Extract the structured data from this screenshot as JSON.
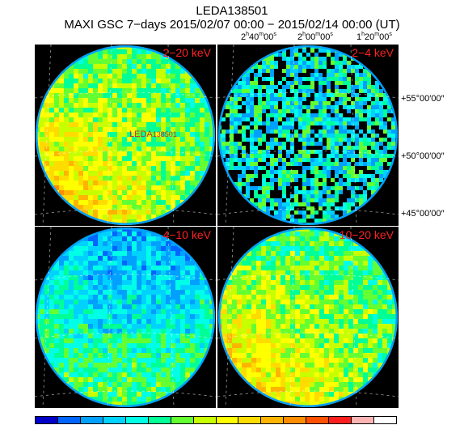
{
  "title": "LEDA138501",
  "subtitle": "MAXI GSC 7−days 2015/02/07 00:00 − 2015/02/14 00:00 (UT)",
  "source_label": {
    "prefix": "LEDA",
    "number": "138501"
  },
  "panels": [
    {
      "band": "2−20 keV",
      "style": "smooth"
    },
    {
      "band": "2−4 keV",
      "style": "noisy"
    },
    {
      "band": "4−10 keV",
      "style": "blue"
    },
    {
      "band": "10−20 keV",
      "style": "smooth"
    }
  ],
  "ra_labels": [
    {
      "h": "2",
      "m": "40",
      "s": "00"
    },
    {
      "h": "2",
      "m": "00",
      "s": "00"
    },
    {
      "h": "1",
      "m": "20",
      "s": "00"
    }
  ],
  "dec_labels": [
    {
      "text": "+55°00′00″"
    },
    {
      "text": "+50°00′00″"
    },
    {
      "text": "+45°00′00″"
    }
  ],
  "colorbar": [
    "#0000c8",
    "#0064ff",
    "#00a0ff",
    "#00d2ff",
    "#00ffe6",
    "#00ff96",
    "#64ff32",
    "#c8ff00",
    "#ffff00",
    "#ffdc00",
    "#ffb400",
    "#ff8c00",
    "#ff5000",
    "#ff1e1e",
    "#ffb4b4",
    "#ffffff"
  ]
}
